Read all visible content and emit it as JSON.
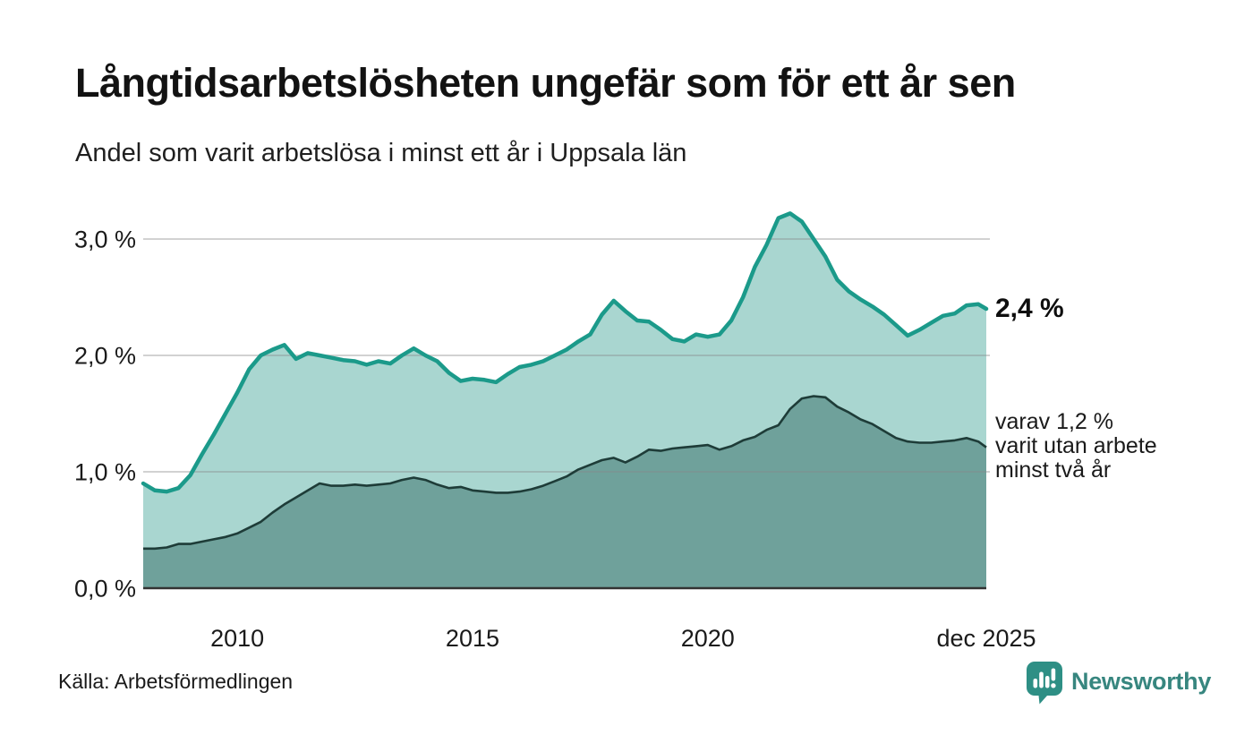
{
  "header": {
    "title": "Långtidsarbetslösheten ungefär som för ett år sen",
    "subtitle": "Andel som varit arbetslösa i minst ett år i Uppsala län"
  },
  "chart_data": {
    "type": "area",
    "title": "Långtidsarbetslösheten ungefär som för ett år sen",
    "subtitle": "Andel som varit arbetslösa i minst ett år i Uppsala län",
    "x_unit": "decimal_year",
    "x_range": [
      2008.0,
      2025.92
    ],
    "ylim": [
      0,
      3.4
    ],
    "grid": true,
    "y_ticks": [
      {
        "value": 3.0,
        "label": "3,0 %"
      },
      {
        "value": 2.0,
        "label": "2,0 %"
      },
      {
        "value": 1.0,
        "label": "1,0 %"
      },
      {
        "value": 0.0,
        "label": "0,0 %"
      }
    ],
    "x_ticks": [
      {
        "t": 2010,
        "label": "2010"
      },
      {
        "t": 2015,
        "label": "2015"
      },
      {
        "t": 2020,
        "label": "2020"
      },
      {
        "t": 2025.92,
        "label": "dec 2025"
      }
    ],
    "x": [
      2008.0,
      2008.25,
      2008.5,
      2008.75,
      2009.0,
      2009.25,
      2009.5,
      2009.75,
      2010.0,
      2010.25,
      2010.5,
      2010.75,
      2011.0,
      2011.25,
      2011.5,
      2011.75,
      2012.0,
      2012.25,
      2012.5,
      2012.75,
      2013.0,
      2013.25,
      2013.5,
      2013.75,
      2014.0,
      2014.25,
      2014.5,
      2014.75,
      2015.0,
      2015.25,
      2015.5,
      2015.75,
      2016.0,
      2016.25,
      2016.5,
      2016.75,
      2017.0,
      2017.25,
      2017.5,
      2017.75,
      2018.0,
      2018.25,
      2018.5,
      2018.75,
      2019.0,
      2019.25,
      2019.5,
      2019.75,
      2020.0,
      2020.25,
      2020.5,
      2020.75,
      2021.0,
      2021.25,
      2021.5,
      2021.75,
      2022.0,
      2022.25,
      2022.5,
      2022.75,
      2023.0,
      2023.25,
      2023.5,
      2023.75,
      2024.0,
      2024.25,
      2024.5,
      2024.75,
      2025.0,
      2025.25,
      2025.5,
      2025.75,
      2025.92
    ],
    "series": [
      {
        "name": "Arbetslösa minst ett år",
        "line_color": "#1b9a8a",
        "fill_color": "#a9d6d0",
        "line_width": 4.5,
        "latest_label": "2,4 %",
        "values": [
          0.9,
          0.84,
          0.83,
          0.86,
          0.97,
          1.15,
          1.32,
          1.5,
          1.68,
          1.88,
          2.0,
          2.05,
          2.09,
          1.97,
          2.02,
          2.0,
          1.98,
          1.96,
          1.95,
          1.92,
          1.95,
          1.93,
          2.0,
          2.06,
          2.0,
          1.95,
          1.85,
          1.78,
          1.8,
          1.79,
          1.77,
          1.84,
          1.9,
          1.92,
          1.95,
          2.0,
          2.05,
          2.12,
          2.18,
          2.35,
          2.47,
          2.38,
          2.3,
          2.29,
          2.22,
          2.14,
          2.12,
          2.18,
          2.16,
          2.18,
          2.3,
          2.5,
          2.76,
          2.95,
          3.18,
          3.22,
          3.15,
          3.0,
          2.85,
          2.65,
          2.55,
          2.48,
          2.42,
          2.35,
          2.26,
          2.17,
          2.22,
          2.28,
          2.34,
          2.36,
          2.43,
          2.44,
          2.4
        ]
      },
      {
        "name": "Arbetslösa minst två år",
        "line_color": "#1e3c38",
        "fill_color": "#6fa19b",
        "line_width": 2.6,
        "latest_label": "varav 1,2 %\nvarit utan arbete\nminst två år",
        "values": [
          0.34,
          0.34,
          0.35,
          0.38,
          0.38,
          0.4,
          0.42,
          0.44,
          0.47,
          0.52,
          0.57,
          0.65,
          0.72,
          0.78,
          0.84,
          0.9,
          0.88,
          0.88,
          0.89,
          0.88,
          0.89,
          0.9,
          0.93,
          0.95,
          0.93,
          0.89,
          0.86,
          0.87,
          0.84,
          0.83,
          0.82,
          0.82,
          0.83,
          0.85,
          0.88,
          0.92,
          0.96,
          1.02,
          1.06,
          1.1,
          1.12,
          1.08,
          1.13,
          1.19,
          1.18,
          1.2,
          1.21,
          1.22,
          1.23,
          1.19,
          1.22,
          1.27,
          1.3,
          1.36,
          1.4,
          1.54,
          1.63,
          1.65,
          1.64,
          1.56,
          1.51,
          1.45,
          1.41,
          1.35,
          1.29,
          1.26,
          1.25,
          1.25,
          1.26,
          1.27,
          1.29,
          1.26,
          1.21
        ]
      }
    ],
    "legend_position": "right-annotations"
  },
  "annotations": {
    "latest_total": "2,4 %",
    "subset_text": "varav 1,2 %\nvarit utan arbete\nminst två år"
  },
  "footer": {
    "source": "Källa: Arbetsförmedlingen",
    "brand": "Newsworthy"
  },
  "colors": {
    "accent_line": "#1b9a8a",
    "light_fill": "#a9d6d0",
    "dark_fill": "#6fa19b",
    "dark_line": "#1e3c38",
    "brand_teal": "#37867f",
    "gridline": "#d9d9d9",
    "baseline": "#333333",
    "text": "#1a1a1a"
  }
}
